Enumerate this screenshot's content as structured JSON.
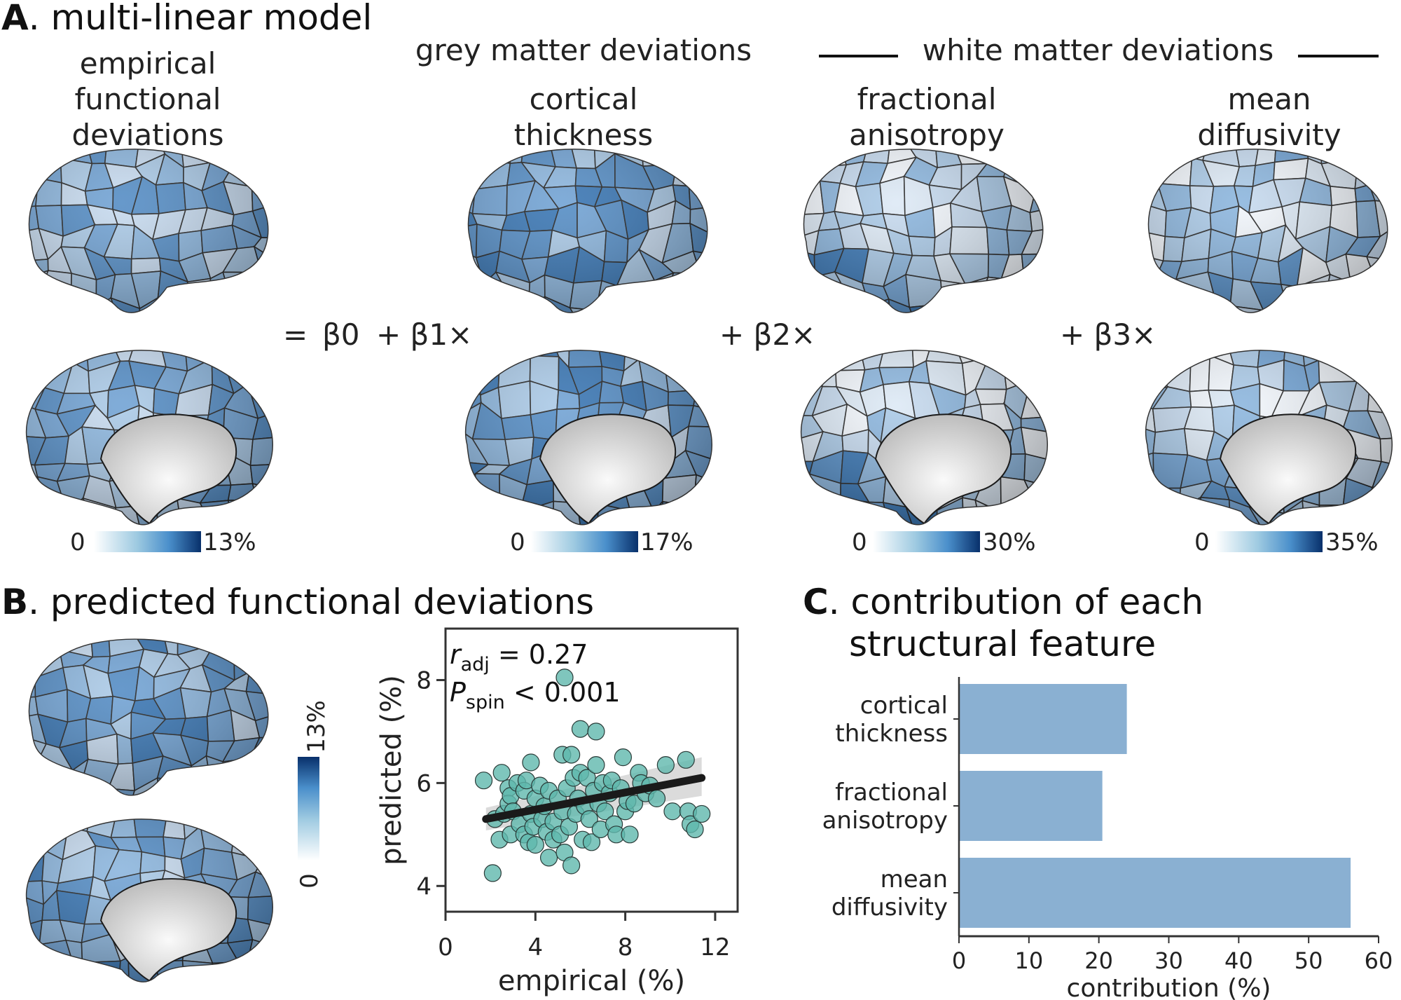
{
  "panel_a": {
    "letter": "A",
    "title": ". multi-linear model",
    "group_grey": "grey matter deviations",
    "group_white": "white matter deviations",
    "columns": [
      {
        "title_lines": [
          "empirical",
          "functional",
          "deviations"
        ],
        "cbar_min": "0",
        "cbar_max": "13%"
      },
      {
        "title_lines": [
          "cortical",
          "thickness"
        ],
        "cbar_min": "0",
        "cbar_max": "17%"
      },
      {
        "title_lines": [
          "fractional",
          "anisotropy"
        ],
        "cbar_min": "0",
        "cbar_max": "30%"
      },
      {
        "title_lines": [
          "mean",
          "diffusivity"
        ],
        "cbar_min": "0",
        "cbar_max": "35%"
      }
    ],
    "equation": {
      "eq": "=",
      "b0": "β0",
      "b1": "+ β1×",
      "b2": "+ β2×",
      "b3": "+ β3×"
    }
  },
  "panel_b": {
    "letter": "B",
    "title": ". predicted functional deviations",
    "cbar_min": "0",
    "cbar_max": "13%"
  },
  "panel_c": {
    "letter": "C",
    "title_line1": ". contribution of each",
    "title_line2": "structural feature"
  },
  "chart_data": [
    {
      "type": "scatter",
      "xlabel": "empirical (%)",
      "ylabel": "predicted (%)",
      "xlim": [
        0,
        13
      ],
      "ylim": [
        3.5,
        9
      ],
      "xticks": [
        "0",
        "4",
        "8",
        "12"
      ],
      "yticks": [
        "4",
        "6",
        "8"
      ],
      "annotation": {
        "r_sym": "r",
        "r_sub": "adj",
        "r_val": " = 0.27",
        "p_sym": "P",
        "p_sub": "spin",
        "p_val": " < 0.001"
      },
      "fit_line": {
        "x": [
          1.8,
          11.4
        ],
        "y": [
          5.3,
          6.1
        ]
      },
      "ci_band": {
        "x": [
          1.8,
          11.4
        ],
        "lower": [
          5.08,
          5.75
        ],
        "upper": [
          5.52,
          6.5
        ]
      },
      "points": [
        [
          1.7,
          6.05
        ],
        [
          2.1,
          4.25
        ],
        [
          2.2,
          5.3
        ],
        [
          2.4,
          4.9
        ],
        [
          2.5,
          6.2
        ],
        [
          2.6,
          5.4
        ],
        [
          2.8,
          5.9
        ],
        [
          2.8,
          5.6
        ],
        [
          2.9,
          5.0
        ],
        [
          2.9,
          5.75
        ],
        [
          3.0,
          5.45
        ],
        [
          3.2,
          6.0
        ],
        [
          3.3,
          5.2
        ],
        [
          3.5,
          5.85
        ],
        [
          3.5,
          5.0
        ],
        [
          3.6,
          6.05
        ],
        [
          3.7,
          4.85
        ],
        [
          3.8,
          5.4
        ],
        [
          3.8,
          6.4
        ],
        [
          3.9,
          5.15
        ],
        [
          4.0,
          5.7
        ],
        [
          4.0,
          4.8
        ],
        [
          4.2,
          5.95
        ],
        [
          4.3,
          5.3
        ],
        [
          4.4,
          5.55
        ],
        [
          4.5,
          5.05
        ],
        [
          4.6,
          5.85
        ],
        [
          4.6,
          4.55
        ],
        [
          4.8,
          5.25
        ],
        [
          4.8,
          4.9
        ],
        [
          5.0,
          5.7
        ],
        [
          5.1,
          5.0
        ],
        [
          5.2,
          6.55
        ],
        [
          5.2,
          5.45
        ],
        [
          5.3,
          8.05
        ],
        [
          5.3,
          4.65
        ],
        [
          5.4,
          5.9
        ],
        [
          5.5,
          5.15
        ],
        [
          5.6,
          6.55
        ],
        [
          5.6,
          4.4
        ],
        [
          5.7,
          6.1
        ],
        [
          5.8,
          5.4
        ],
        [
          5.9,
          5.7
        ],
        [
          6.0,
          7.05
        ],
        [
          6.0,
          6.2
        ],
        [
          6.1,
          4.9
        ],
        [
          6.2,
          5.55
        ],
        [
          6.3,
          6.1
        ],
        [
          6.4,
          5.3
        ],
        [
          6.5,
          4.85
        ],
        [
          6.6,
          5.85
        ],
        [
          6.7,
          6.35
        ],
        [
          6.7,
          7.0
        ],
        [
          6.8,
          5.6
        ],
        [
          6.9,
          5.1
        ],
        [
          7.0,
          6.0
        ],
        [
          7.1,
          5.45
        ],
        [
          7.3,
          5.8
        ],
        [
          7.4,
          6.05
        ],
        [
          7.5,
          5.2
        ],
        [
          7.6,
          5.0
        ],
        [
          7.8,
          5.9
        ],
        [
          7.9,
          6.5
        ],
        [
          8.0,
          5.45
        ],
        [
          8.1,
          5.65
        ],
        [
          8.2,
          5.0
        ],
        [
          8.4,
          5.6
        ],
        [
          8.6,
          6.2
        ],
        [
          8.7,
          6.0
        ],
        [
          8.9,
          5.8
        ],
        [
          9.1,
          5.95
        ],
        [
          9.4,
          5.7
        ],
        [
          9.8,
          6.35
        ],
        [
          10.1,
          5.45
        ],
        [
          10.7,
          6.45
        ],
        [
          10.8,
          5.45
        ],
        [
          10.9,
          5.2
        ],
        [
          11.1,
          5.1
        ],
        [
          11.4,
          5.4
        ]
      ]
    },
    {
      "type": "bar",
      "orientation": "horizontal",
      "categories": [
        [
          "cortical",
          "thickness"
        ],
        [
          "fractional",
          "anisotropy"
        ],
        [
          "mean",
          "diffusivity"
        ]
      ],
      "values": [
        24,
        20.5,
        56
      ],
      "xlabel": "contribution (%)",
      "xlim": [
        0,
        60
      ],
      "xticks": [
        "0",
        "10",
        "20",
        "30",
        "40",
        "50",
        "60"
      ],
      "color": "#8ab0d2"
    }
  ],
  "colors": {
    "point": "#5fb8ad",
    "bar": "#8ab0d2",
    "dark_blue": "#08306b",
    "fit": "#1a1a1a"
  }
}
